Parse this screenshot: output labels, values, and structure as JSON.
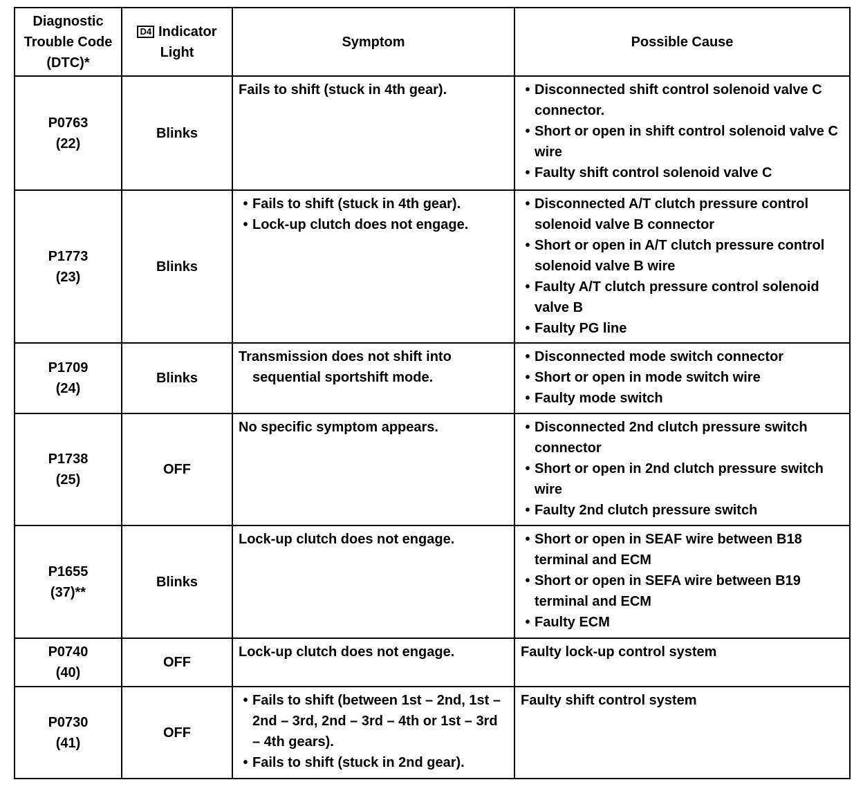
{
  "header": {
    "dtc": [
      "Diagnostic",
      "Trouble Code",
      "(DTC)*"
    ],
    "indicator_icon": "D4",
    "indicator": [
      "Indicator",
      "Light"
    ],
    "symptom": "Symptom",
    "cause": "Possible Cause"
  },
  "rows": [
    {
      "code": "P0763",
      "sub": "(22)",
      "light": "Blinks",
      "symptom": {
        "bullets": false,
        "items": [
          "Fails to shift (stuck in 4th gear)."
        ]
      },
      "cause": {
        "bullets": true,
        "items": [
          "Disconnected shift control solenoid valve C connector.",
          "Short or open in shift control solenoid valve C wire",
          "Faulty shift control solenoid valve C"
        ]
      }
    },
    {
      "code": "P1773",
      "sub": "(23)",
      "light": "Blinks",
      "symptom": {
        "bullets": true,
        "items": [
          "Fails to shift (stuck in 4th gear).",
          "Lock-up clutch does not engage."
        ]
      },
      "cause": {
        "bullets": true,
        "items": [
          "Disconnected A/T clutch pressure control solenoid valve B connector",
          "Short or open in A/T clutch pressure control solenoid valve B wire",
          "Faulty A/T clutch pressure control solenoid valve B",
          "Faulty PG line"
        ]
      }
    },
    {
      "code": "P1709",
      "sub": "(24)",
      "light": "Blinks",
      "symptom": {
        "bullets": false,
        "items": [
          "Transmission does not shift into sequential sportshift mode."
        ]
      },
      "cause": {
        "bullets": true,
        "items": [
          "Disconnected mode switch connector",
          "Short or open in mode switch wire",
          "Faulty mode switch"
        ]
      }
    },
    {
      "code": "P1738",
      "sub": "(25)",
      "light": "OFF",
      "symptom": {
        "bullets": false,
        "items": [
          "No specific symptom appears."
        ]
      },
      "cause": {
        "bullets": true,
        "items": [
          "Disconnected 2nd clutch pressure switch connector",
          "Short or open in 2nd clutch pressure switch wire",
          "Faulty 2nd clutch pressure switch"
        ]
      }
    },
    {
      "code": "P1655",
      "sub": "(37)**",
      "light": "Blinks",
      "symptom": {
        "bullets": false,
        "items": [
          "Lock-up clutch does not engage."
        ]
      },
      "cause": {
        "bullets": true,
        "items": [
          "Short or open in SEAF wire between B18 terminal and ECM",
          "Short or open in SEFA wire between B19 terminal and ECM",
          "Faulty ECM"
        ]
      }
    },
    {
      "code": "P0740",
      "sub": "(40)",
      "light": "OFF",
      "symptom": {
        "bullets": false,
        "items": [
          "Lock-up clutch does not engage."
        ]
      },
      "cause": {
        "bullets": false,
        "items": [
          "Faulty lock-up control system"
        ]
      }
    },
    {
      "code": "P0730",
      "sub": "(41)",
      "light": "OFF",
      "symptom": {
        "bullets": true,
        "items": [
          "Fails to shift (between 1st – 2nd, 1st – 2nd – 3rd, 2nd – 3rd – 4th or 1st – 3rd – 4th gears).",
          "Fails to shift (stuck in 2nd gear)."
        ]
      },
      "cause": {
        "bullets": false,
        "items": [
          "Faulty shift control system"
        ]
      }
    }
  ]
}
